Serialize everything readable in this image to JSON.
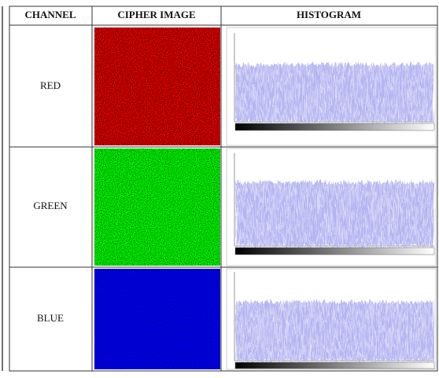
{
  "table": {
    "header": [
      "CHANNEL",
      "CIPHER IMAGE",
      "HISTOGRAM"
    ],
    "rows": [
      [
        "RED"
      ],
      [
        "GREEN"
      ],
      [
        "BLUE"
      ]
    ]
  }
}
